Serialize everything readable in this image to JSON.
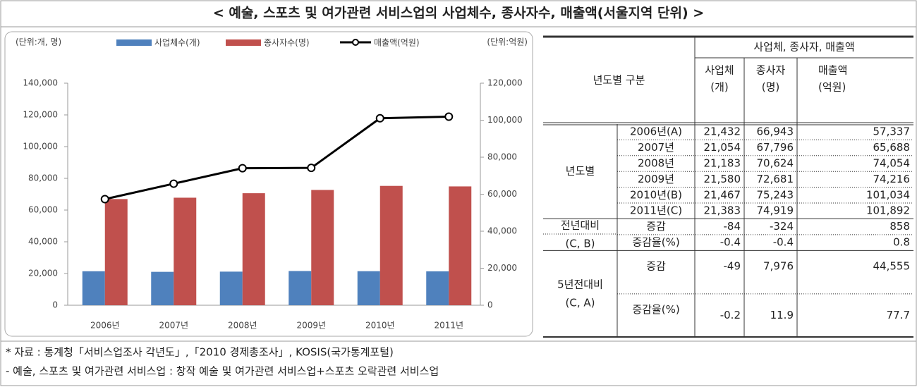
{
  "title": "< 예술, 스포츠 및 여가관련 서비스업의 사업체수, 종사자수, 매출액(서울지역 단위) >",
  "chart_data": {
    "type": "combo",
    "y_label": "(단위:개, 명)",
    "y2_label": "(단위:억원)",
    "categories": [
      "2006년",
      "2007년",
      "2008년",
      "2009년",
      "2010년",
      "2011년"
    ],
    "series": [
      {
        "name": "사업체수(개)",
        "type": "bar",
        "color": "#4f81bd",
        "values": [
          21432,
          21054,
          21183,
          21580,
          21467,
          21383
        ]
      },
      {
        "name": "종사자수(명)",
        "type": "bar",
        "color": "#c0504d",
        "values": [
          66943,
          67796,
          70624,
          72681,
          75243,
          74919
        ]
      },
      {
        "name": "매출액(억원)",
        "type": "line",
        "axis": "y2",
        "color": "#000000",
        "values": [
          57337,
          65688,
          74054,
          74216,
          101034,
          101892
        ]
      }
    ],
    "ylim": [
      0,
      140000
    ],
    "yticks": [
      0,
      {
        "value": 20000,
        "label": "20,000"
      },
      {
        "value": 40000,
        "label": "40,000"
      },
      {
        "value": 60000,
        "label": "60,000"
      },
      {
        "value": 80000,
        "label": "80,000"
      },
      {
        "value": 100000,
        "label": "100,000"
      },
      {
        "value": 120000,
        "label": "120,000"
      },
      {
        "value": 140000,
        "label": "140,000"
      }
    ],
    "y2lim": [
      0,
      120000
    ],
    "y2ticks": [
      0,
      {
        "value": 20000,
        "label": "20,000"
      },
      {
        "value": 40000,
        "label": "40,000"
      },
      {
        "value": 60000,
        "label": "60,000"
      },
      {
        "value": 80000,
        "label": "80,000"
      },
      {
        "value": 100000,
        "label": "100,000"
      },
      {
        "value": 120000,
        "label": "120,000"
      }
    ],
    "legend": "top"
  },
  "table": {
    "header": {
      "corner": "년도별 구분",
      "group": "사업체, 종사자, 매출액",
      "columns": [
        [
          "사업체",
          "(개)"
        ],
        [
          "종사자",
          "(명)"
        ],
        [
          "매출액",
          "(억원)"
        ]
      ]
    },
    "sections": [
      {
        "label": [
          "년도별"
        ],
        "rows": [
          {
            "label": "2006년(A)",
            "cells": [
              "21,432",
              "66,943",
              "57,337"
            ]
          },
          {
            "label": "2007년",
            "cells": [
              "21,054",
              "67,796",
              "65,688"
            ]
          },
          {
            "label": "2008년",
            "cells": [
              "21,183",
              "70,624",
              "74,054"
            ]
          },
          {
            "label": "2009년",
            "cells": [
              "21,580",
              "72,681",
              "74,216"
            ]
          },
          {
            "label": "2010년(B)",
            "cells": [
              "21,467",
              "75,243",
              "101,034"
            ]
          },
          {
            "label": "2011년(C)",
            "cells": [
              "21,383",
              "74,919",
              "101,892"
            ]
          }
        ]
      },
      {
        "label": [
          "전년대비",
          "(C, B)"
        ],
        "rows": [
          {
            "label": "증감",
            "cells": [
              "-84",
              "-324",
              "858"
            ]
          },
          {
            "label": "증감율(%)",
            "cells": [
              "-0.4",
              "-0.4",
              "0.8"
            ]
          }
        ]
      },
      {
        "label": [
          "5년전대비",
          "(C, A)"
        ],
        "rows": [
          {
            "label": "증감",
            "cells": [
              "-49",
              "7,976",
              "44,555"
            ]
          },
          {
            "label": "증감율(%)",
            "cells": [
              "-0.2",
              "11.9",
              "77.7"
            ]
          }
        ]
      }
    ]
  },
  "notes": [
    "* 자료 : 통계청「서비스업조사 각년도」,「2010 경제총조사」, KOSIS(국가통계포털)",
    "- 예술, 스포츠 및 여가관련 서비스업 : 창작 예술 및 여가관련 서비스업+스포츠 오락관련 서비스업"
  ]
}
